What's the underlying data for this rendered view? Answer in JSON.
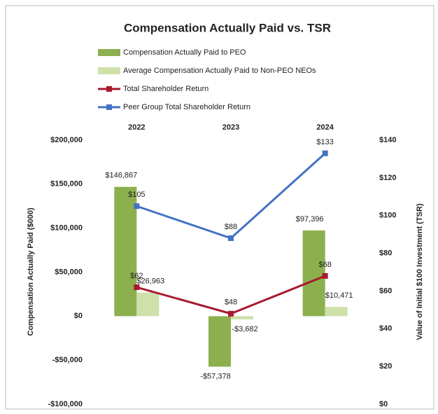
{
  "chart_data": {
    "type": "combo",
    "title": "Compensation Actually Paid vs. TSR",
    "categories": [
      "2022",
      "2023",
      "2024"
    ],
    "series": [
      {
        "name": "Compensation Actually Paid to PEO",
        "type": "bar",
        "color": "#8db04f",
        "values": [
          146867,
          -57378,
          97396
        ],
        "value_labels": [
          "$146,867",
          "-$57,378",
          "$97,396"
        ]
      },
      {
        "name": "Average Compensation Actually Paid to Non-PEO NEOs",
        "type": "bar",
        "color": "#cfe0ab",
        "values": [
          26963,
          -3682,
          10471
        ],
        "value_labels": [
          "$26,963",
          "-$3,682",
          "$10,471"
        ]
      },
      {
        "name": "Total Shareholder Return",
        "type": "line",
        "axis": "y2",
        "color": "#a8192e",
        "values": [
          62,
          48,
          68
        ],
        "value_labels": [
          "$62",
          "$48",
          "$68"
        ]
      },
      {
        "name": "Peer Group Total Shareholder Return",
        "type": "line",
        "axis": "y2",
        "color": "#4472c4",
        "values": [
          105,
          88,
          133
        ],
        "value_labels": [
          "$105",
          "$88",
          "$133"
        ]
      }
    ],
    "ylabel": "Compensation Actually Paid ($000)",
    "y2label": "Value of Initial $100 Investment (TSR)",
    "ylim": [
      -100000,
      200000
    ],
    "yticks": [
      {
        "value": -100000,
        "label": "-$100,000"
      },
      {
        "value": -50000,
        "label": "-$50,000"
      },
      {
        "value": 0,
        "label": "$0"
      },
      {
        "value": 50000,
        "label": "$50,000"
      },
      {
        "value": 100000,
        "label": "$100,000"
      },
      {
        "value": 150000,
        "label": "$150,000"
      },
      {
        "value": 200000,
        "label": "$200,000"
      }
    ],
    "y2lim": [
      0,
      140
    ],
    "y2ticks": [
      {
        "value": 0,
        "label": "$0"
      },
      {
        "value": 20,
        "label": "$20"
      },
      {
        "value": 40,
        "label": "$40"
      },
      {
        "value": 60,
        "label": "$60"
      },
      {
        "value": 80,
        "label": "$80"
      },
      {
        "value": 100,
        "label": "$100"
      },
      {
        "value": 120,
        "label": "$120"
      },
      {
        "value": 140,
        "label": "$140"
      }
    ],
    "grid": false,
    "legend": "top"
  }
}
